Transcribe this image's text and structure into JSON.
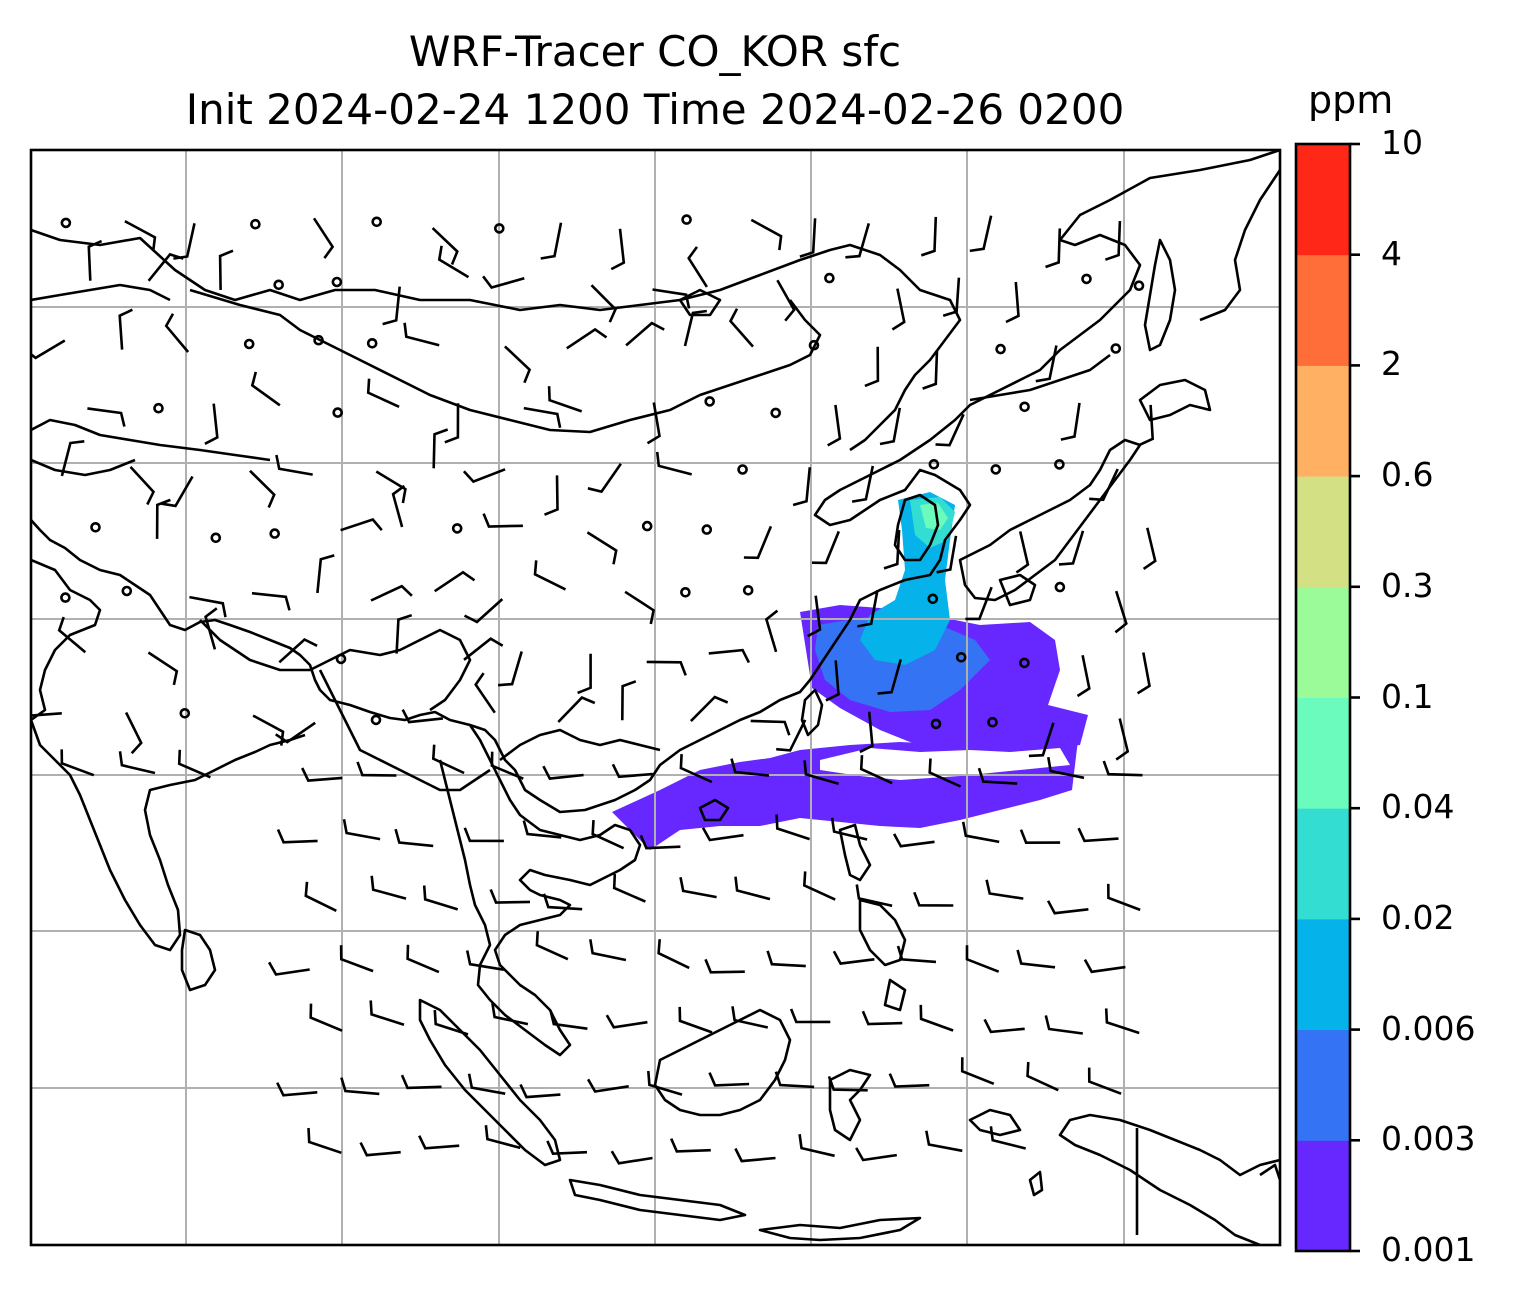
{
  "title": {
    "line1": "WRF-Tracer CO_KOR sfc",
    "line2": "Init 2024-02-24 1200 Time 2024-02-26 0200"
  },
  "colorbar": {
    "unit": "ppm",
    "levels": [
      "0.001",
      "0.003",
      "0.006",
      "0.02",
      "0.04",
      "0.1",
      "0.3",
      "0.6",
      "2",
      "4",
      "10"
    ],
    "colors": [
      "#6628ff",
      "#3474f4",
      "#05b2ea",
      "#33ddd2",
      "#6bfbbc",
      "#9afb98",
      "#d3e184",
      "#ffb062",
      "#ff6e38",
      "#ff2718"
    ]
  },
  "map": {
    "gridlines": true,
    "features": [
      "coastlines",
      "wind-barbs",
      "tracer-plume"
    ]
  }
}
